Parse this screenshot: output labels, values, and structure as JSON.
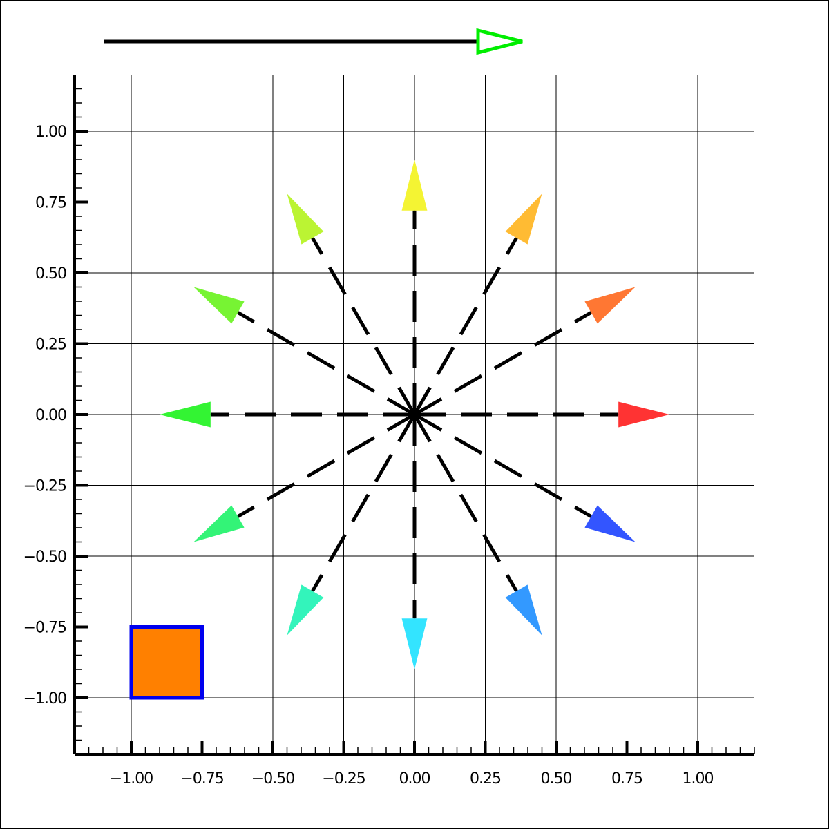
{
  "chart_data": {
    "type": "scatter",
    "title": "",
    "xlabel": "",
    "ylabel": "",
    "xlim": [
      -1.2,
      1.2
    ],
    "ylim": [
      -1.2,
      1.2
    ],
    "grid": true,
    "x_ticks": [
      -1.0,
      -0.75,
      -0.5,
      -0.25,
      0.0,
      0.25,
      0.5,
      0.75,
      1.0
    ],
    "y_ticks": [
      -1.0,
      -0.75,
      -0.5,
      -0.25,
      0.0,
      0.25,
      0.5,
      0.75,
      1.0
    ],
    "x_tick_labels": [
      "−1.00",
      "−0.75",
      "−0.50",
      "−0.25",
      "0.00",
      "0.25",
      "0.50",
      "0.75",
      "1.00"
    ],
    "y_tick_labels": [
      "−1.00",
      "−0.75",
      "−0.50",
      "−0.25",
      "0.00",
      "0.25",
      "0.50",
      "0.75",
      "1.00"
    ],
    "legend_arrow": {
      "color": "#00ee00",
      "fill": "none",
      "direction": "right"
    },
    "radial_arrows": [
      {
        "angle_deg": 0,
        "length": 0.9,
        "color": "#ff3333"
      },
      {
        "angle_deg": 30,
        "length": 0.9,
        "color": "#ff7733"
      },
      {
        "angle_deg": 60,
        "length": 0.9,
        "color": "#ffbb33"
      },
      {
        "angle_deg": 90,
        "length": 0.9,
        "color": "#f4f433"
      },
      {
        "angle_deg": 120,
        "length": 0.9,
        "color": "#bbf433"
      },
      {
        "angle_deg": 150,
        "length": 0.9,
        "color": "#77f433"
      },
      {
        "angle_deg": 180,
        "length": 0.9,
        "color": "#33f433"
      },
      {
        "angle_deg": 210,
        "length": 0.9,
        "color": "#33f477"
      },
      {
        "angle_deg": 240,
        "length": 0.9,
        "color": "#33f4bb"
      },
      {
        "angle_deg": 270,
        "length": 0.9,
        "color": "#33e4ff"
      },
      {
        "angle_deg": 300,
        "length": 0.9,
        "color": "#3399ff"
      },
      {
        "angle_deg": 330,
        "length": 0.9,
        "color": "#3355ff"
      }
    ],
    "rectangle": {
      "x": -1.0,
      "y": -1.0,
      "width": 0.25,
      "height": 0.25,
      "fill": "#ff8000",
      "edge": "#0000ee"
    }
  }
}
